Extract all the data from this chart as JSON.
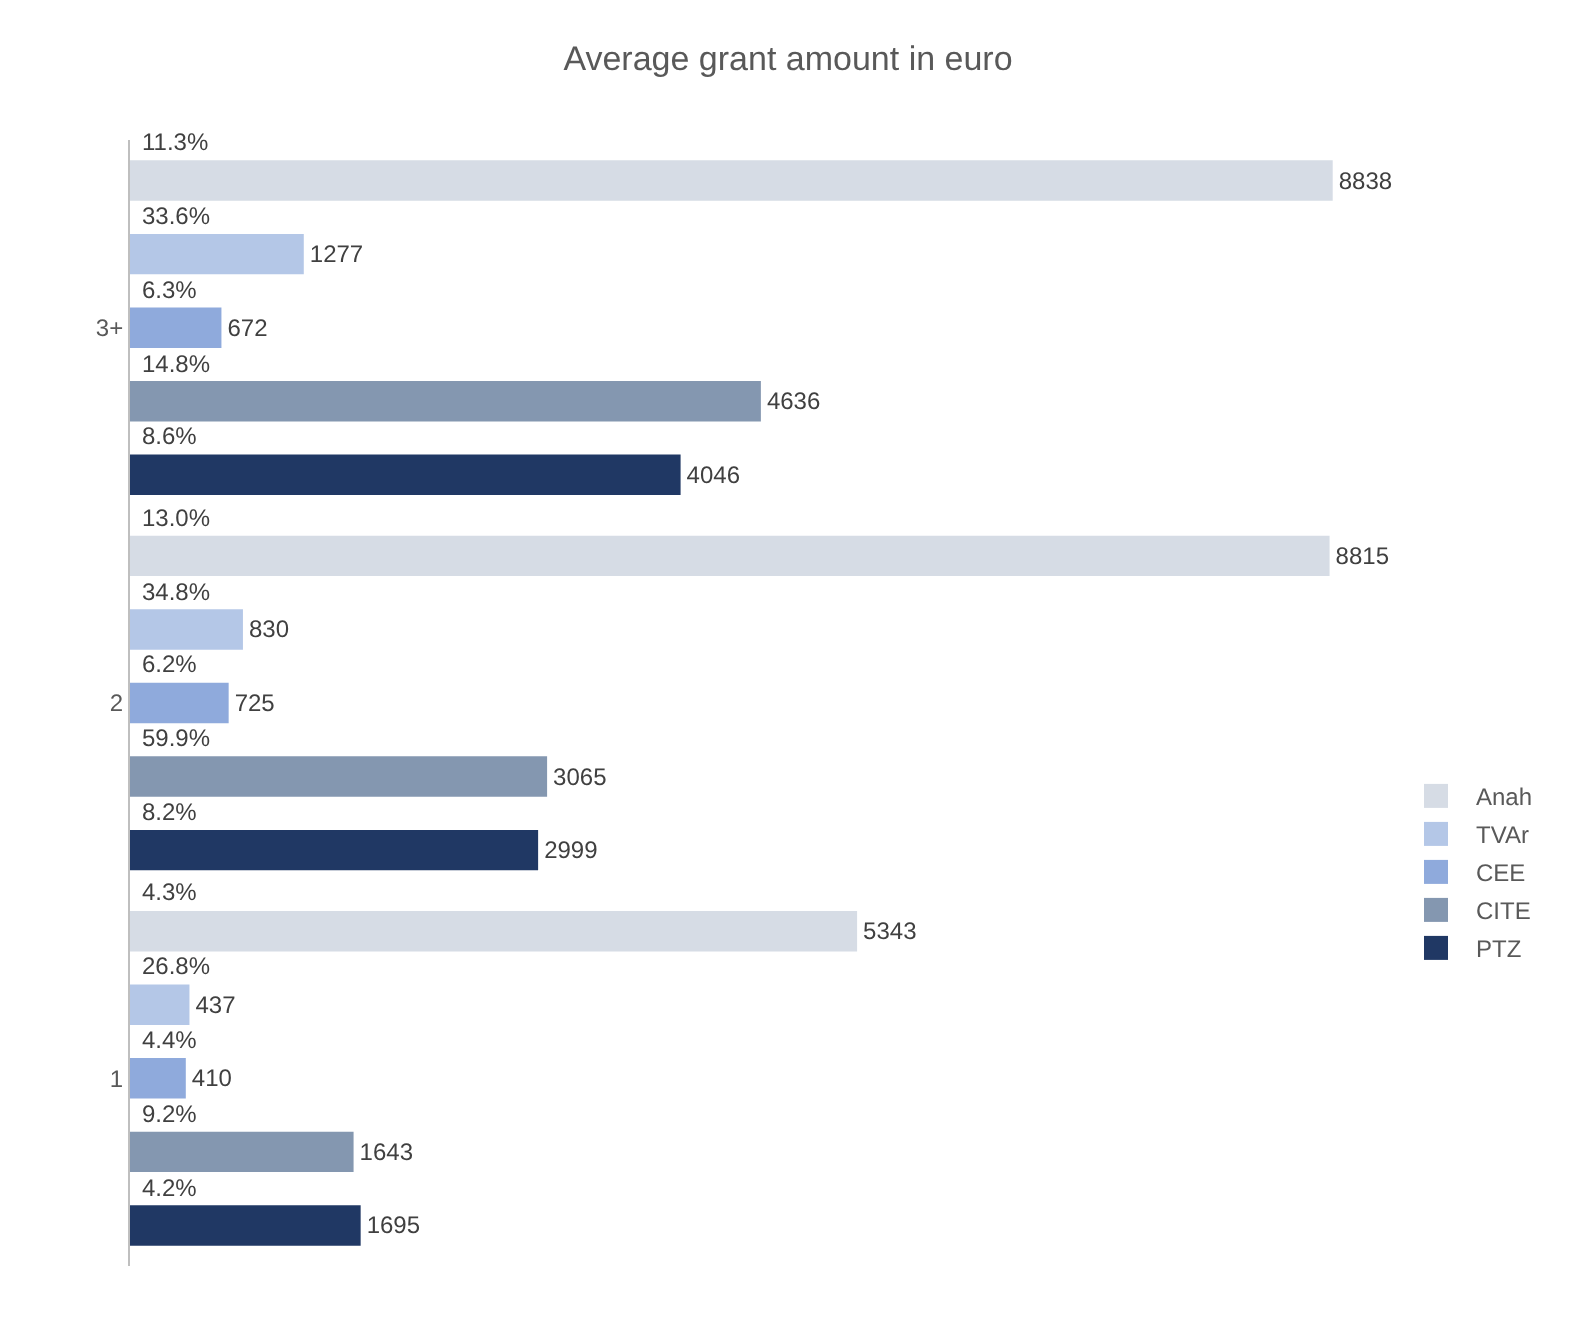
{
  "chart_data": {
    "type": "bar",
    "title": "Average grant amount in euro",
    "orientation": "horizontal",
    "categories": [
      "3+",
      "2",
      "1"
    ],
    "series": [
      {
        "name": "Anah",
        "color": "#d6dce5",
        "values": [
          8838,
          8815,
          5343
        ]
      },
      {
        "name": "TVAr",
        "color": "#b4c7e7",
        "values": [
          1277,
          830,
          437
        ]
      },
      {
        "name": "CEE",
        "color": "#8faadc",
        "values": [
          672,
          725,
          410
        ]
      },
      {
        "name": "CITE",
        "color": "#8497b0",
        "values": [
          4636,
          3065,
          1643
        ]
      },
      {
        "name": "PTZ",
        "color": "#203864",
        "values": [
          4046,
          2999,
          1695
        ]
      }
    ],
    "annotations": [
      "11.3%",
      "33.6%",
      "6.3%",
      "14.8%",
      "8.6%",
      "13.0%",
      "34.8%",
      "6.2%",
      "59.9%",
      "8.2%",
      "4.3%",
      "26.8%",
      "4.4%",
      "9.2%",
      "4.2%"
    ],
    "data_labels": true,
    "legend": "right",
    "grid": false,
    "tick_labels": "y"
  }
}
